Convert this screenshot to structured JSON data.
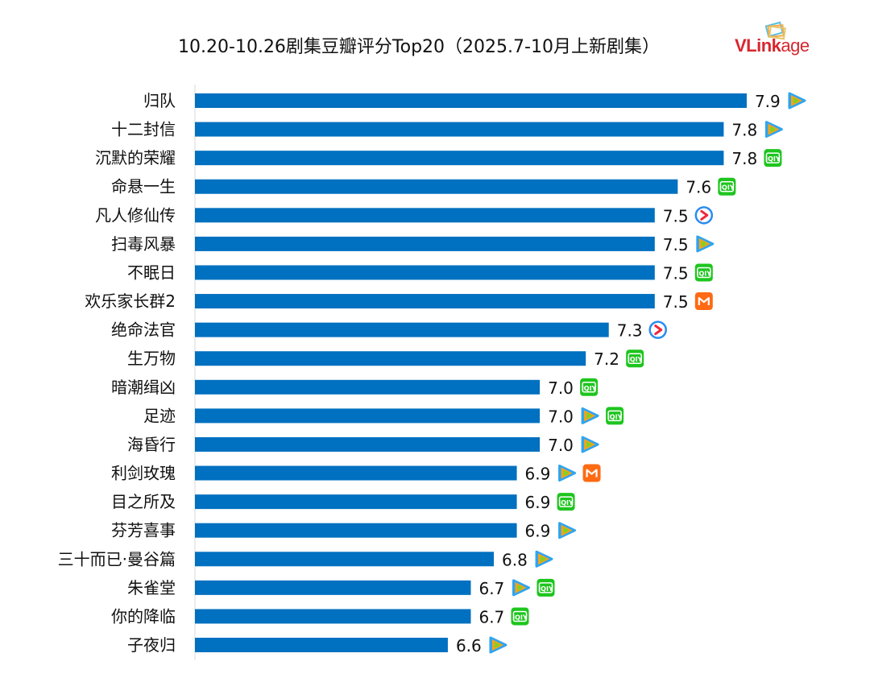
{
  "brand": "VLinkage",
  "chart_data": {
    "type": "bar",
    "orientation": "horizontal",
    "title": "10.20-10.26剧集豆瓣评分Top20（2025.7-10月上新剧集）",
    "xlim": [
      5.5,
      8.2
    ],
    "grid": false,
    "bar_color": "#0070c0",
    "categories": [
      "归队",
      "十二封信",
      "沉默的荣耀",
      "命悬一生",
      "凡人修仙传",
      "扫毒风暴",
      "不眠日",
      "欢乐家长群2",
      "绝命法官",
      "生万物",
      "暗潮缉凶",
      "足迹",
      "海昏行",
      "利剑玫瑰",
      "目之所及",
      "芬芳喜事",
      "三十而已·曼谷篇",
      "朱雀堂",
      "你的降临",
      "子夜归"
    ],
    "values": [
      7.9,
      7.8,
      7.8,
      7.6,
      7.5,
      7.5,
      7.5,
      7.5,
      7.3,
      7.2,
      7.0,
      7.0,
      7.0,
      6.9,
      6.9,
      6.9,
      6.8,
      6.7,
      6.7,
      6.6
    ],
    "data_labels": [
      "7.9",
      "7.8",
      "7.8",
      "7.6",
      "7.5",
      "7.5",
      "7.5",
      "7.5",
      "7.3",
      "7.2",
      "7.0",
      "7.0",
      "7.0",
      "6.9",
      "6.9",
      "6.9",
      "6.8",
      "6.7",
      "6.7",
      "6.6"
    ],
    "platforms": [
      [
        "tencent-video"
      ],
      [
        "tencent-video"
      ],
      [
        "iqiyi"
      ],
      [
        "iqiyi"
      ],
      [
        "youku"
      ],
      [
        "tencent-video"
      ],
      [
        "iqiyi"
      ],
      [
        "mango-tv"
      ],
      [
        "youku"
      ],
      [
        "iqiyi"
      ],
      [
        "iqiyi"
      ],
      [
        "tencent-video",
        "iqiyi"
      ],
      [
        "tencent-video"
      ],
      [
        "tencent-video",
        "mango-tv"
      ],
      [
        "iqiyi"
      ],
      [
        "tencent-video"
      ],
      [
        "tencent-video"
      ],
      [
        "tencent-video",
        "iqiyi"
      ],
      [
        "iqiyi"
      ],
      [
        "tencent-video"
      ]
    ]
  }
}
